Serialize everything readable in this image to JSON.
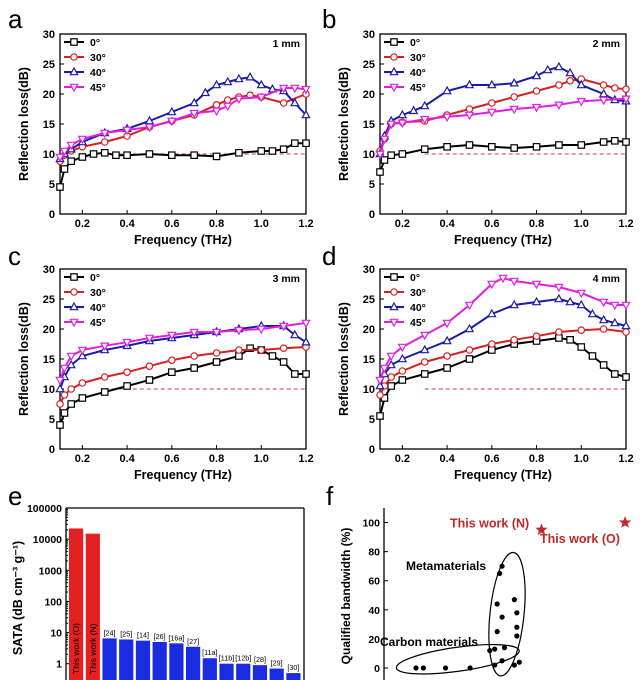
{
  "chart_data": [
    {
      "panel": "a",
      "type": "line",
      "annotation": "1 mm",
      "xlabel": "Frequency (THz)",
      "ylabel": "Reflection loss(dB)",
      "xlim": [
        0.1,
        1.2
      ],
      "ylim": [
        0,
        30
      ],
      "xticks": [
        "0.2",
        "0.4",
        "0.6",
        "0.8",
        "1.0",
        "1.2"
      ],
      "yticks": [
        "0",
        "5",
        "10",
        "15",
        "20",
        "25",
        "30"
      ],
      "reference_line_y": 10,
      "series": [
        {
          "name": "0°",
          "color": "#000000",
          "marker": "square",
          "x": [
            0.1,
            0.12,
            0.15,
            0.2,
            0.25,
            0.3,
            0.35,
            0.4,
            0.5,
            0.6,
            0.7,
            0.8,
            0.9,
            1.0,
            1.05,
            1.1,
            1.15,
            1.2
          ],
          "y": [
            4.5,
            7.5,
            8.8,
            9.5,
            10.0,
            10.2,
            9.8,
            9.8,
            10.0,
            9.8,
            9.8,
            9.6,
            10.2,
            10.5,
            10.5,
            10.8,
            11.8,
            11.8
          ]
        },
        {
          "name": "30°",
          "color": "#d62020",
          "marker": "circle",
          "x": [
            0.1,
            0.12,
            0.15,
            0.2,
            0.3,
            0.4,
            0.5,
            0.6,
            0.7,
            0.8,
            0.85,
            0.9,
            0.95,
            1.0,
            1.1,
            1.2
          ],
          "y": [
            8.8,
            9.8,
            10.5,
            11.2,
            12.0,
            13.0,
            14.5,
            15.5,
            16.5,
            18.2,
            19.0,
            19.5,
            19.8,
            19.5,
            18.5,
            20.0
          ]
        },
        {
          "name": "40°",
          "color": "#1a1aa8",
          "marker": "triangle",
          "x": [
            0.1,
            0.12,
            0.15,
            0.2,
            0.3,
            0.4,
            0.5,
            0.6,
            0.7,
            0.75,
            0.8,
            0.85,
            0.9,
            0.95,
            1.0,
            1.05,
            1.1,
            1.15,
            1.2
          ],
          "y": [
            9.2,
            10.0,
            10.8,
            12.0,
            13.5,
            14.2,
            15.5,
            17.0,
            18.5,
            20.2,
            21.5,
            22.0,
            22.5,
            22.8,
            21.5,
            20.8,
            20.5,
            18.5,
            16.5
          ]
        },
        {
          "name": "45°",
          "color": "#e21ee2",
          "marker": "triangle-down",
          "x": [
            0.1,
            0.12,
            0.15,
            0.2,
            0.3,
            0.4,
            0.5,
            0.6,
            0.7,
            0.8,
            0.85,
            0.9,
            1.0,
            1.1,
            1.15,
            1.2
          ],
          "y": [
            9.5,
            10.5,
            11.5,
            12.5,
            13.5,
            14.0,
            14.5,
            15.5,
            16.8,
            17.2,
            18.0,
            19.2,
            19.5,
            21.0,
            21.0,
            20.8
          ]
        }
      ]
    },
    {
      "panel": "b",
      "type": "line",
      "annotation": "2 mm",
      "xlabel": "Frequency (THz)",
      "ylabel": "Reflection loss(dB)",
      "xlim": [
        0.1,
        1.2
      ],
      "ylim": [
        0,
        30
      ],
      "xticks": [
        "0.2",
        "0.4",
        "0.6",
        "0.8",
        "1.0",
        "1.2"
      ],
      "yticks": [
        "0",
        "5",
        "10",
        "15",
        "20",
        "25",
        "30"
      ],
      "reference_line_y": 10,
      "series": [
        {
          "name": "0°",
          "color": "#000000",
          "marker": "square",
          "x": [
            0.1,
            0.12,
            0.15,
            0.2,
            0.3,
            0.4,
            0.5,
            0.6,
            0.7,
            0.8,
            0.9,
            1.0,
            1.1,
            1.15,
            1.2
          ],
          "y": [
            7.0,
            9.0,
            9.8,
            10.0,
            10.8,
            11.2,
            11.5,
            11.2,
            11.0,
            11.2,
            11.5,
            11.5,
            12.0,
            12.2,
            12.0
          ]
        },
        {
          "name": "30°",
          "color": "#d62020",
          "marker": "circle",
          "x": [
            0.1,
            0.12,
            0.15,
            0.2,
            0.3,
            0.4,
            0.5,
            0.6,
            0.7,
            0.8,
            0.9,
            0.95,
            1.0,
            1.1,
            1.15,
            1.2
          ],
          "y": [
            10.5,
            12.5,
            15.0,
            15.3,
            15.5,
            16.5,
            17.5,
            18.5,
            19.5,
            20.5,
            21.5,
            22.2,
            22.5,
            21.5,
            21.0,
            20.8
          ]
        },
        {
          "name": "40°",
          "color": "#1a1aa8",
          "marker": "triangle",
          "x": [
            0.1,
            0.12,
            0.15,
            0.2,
            0.25,
            0.3,
            0.4,
            0.5,
            0.6,
            0.7,
            0.8,
            0.85,
            0.9,
            0.95,
            1.0,
            1.1,
            1.15,
            1.2
          ],
          "y": [
            10.0,
            13.0,
            15.5,
            16.5,
            17.2,
            18.0,
            20.5,
            21.5,
            21.5,
            21.8,
            23.0,
            24.0,
            24.5,
            23.5,
            21.5,
            20.0,
            19.0,
            18.8
          ]
        },
        {
          "name": "45°",
          "color": "#e21ee2",
          "marker": "triangle-down",
          "x": [
            0.1,
            0.12,
            0.15,
            0.2,
            0.3,
            0.4,
            0.5,
            0.6,
            0.7,
            0.8,
            0.9,
            1.0,
            1.1,
            1.2
          ],
          "y": [
            10.0,
            12.5,
            15.0,
            15.2,
            15.8,
            16.2,
            16.5,
            17.0,
            17.5,
            17.8,
            18.2,
            18.8,
            19.0,
            19.2
          ]
        }
      ]
    },
    {
      "panel": "c",
      "type": "line",
      "annotation": "3 mm",
      "xlabel": "Frequency (THz)",
      "ylabel": "Reflection loss(dB)",
      "xlim": [
        0.1,
        1.2
      ],
      "ylim": [
        0,
        30
      ],
      "xticks": [
        "0.2",
        "0.4",
        "0.6",
        "0.8",
        "1.0",
        "1.2"
      ],
      "yticks": [
        "0",
        "5",
        "10",
        "15",
        "20",
        "25",
        "30"
      ],
      "reference_line_y": 10,
      "series": [
        {
          "name": "0°",
          "color": "#000000",
          "marker": "square",
          "x": [
            0.1,
            0.12,
            0.15,
            0.2,
            0.3,
            0.4,
            0.5,
            0.6,
            0.7,
            0.8,
            0.9,
            0.95,
            1.0,
            1.05,
            1.1,
            1.15,
            1.2
          ],
          "y": [
            4.0,
            6.0,
            7.5,
            8.5,
            9.5,
            10.5,
            11.5,
            12.8,
            13.5,
            14.5,
            15.5,
            16.8,
            16.5,
            15.5,
            14.5,
            12.5,
            12.5
          ]
        },
        {
          "name": "30°",
          "color": "#d62020",
          "marker": "circle",
          "x": [
            0.1,
            0.12,
            0.15,
            0.2,
            0.3,
            0.4,
            0.5,
            0.6,
            0.7,
            0.8,
            0.9,
            1.0,
            1.1,
            1.2
          ],
          "y": [
            7.5,
            9.0,
            10.0,
            11.0,
            12.0,
            12.8,
            13.8,
            14.8,
            15.5,
            16.0,
            16.5,
            16.5,
            16.8,
            17.0
          ]
        },
        {
          "name": "40°",
          "color": "#1a1aa8",
          "marker": "triangle",
          "x": [
            0.1,
            0.12,
            0.15,
            0.2,
            0.3,
            0.4,
            0.5,
            0.6,
            0.7,
            0.8,
            0.9,
            1.0,
            1.1,
            1.15,
            1.2
          ],
          "y": [
            10.0,
            12.0,
            14.0,
            15.5,
            16.5,
            17.2,
            18.0,
            18.5,
            19.0,
            19.5,
            20.0,
            20.5,
            20.5,
            19.0,
            17.8
          ]
        },
        {
          "name": "45°",
          "color": "#e21ee2",
          "marker": "triangle-down",
          "x": [
            0.1,
            0.12,
            0.15,
            0.2,
            0.3,
            0.4,
            0.5,
            0.6,
            0.7,
            0.8,
            0.9,
            1.0,
            1.1,
            1.2
          ],
          "y": [
            11.5,
            13.5,
            15.5,
            16.5,
            17.2,
            17.8,
            18.5,
            19.0,
            19.5,
            19.5,
            19.8,
            20.0,
            20.5,
            21.0
          ]
        }
      ]
    },
    {
      "panel": "d",
      "type": "line",
      "annotation": "4 mm",
      "xlabel": "Frequency (THz)",
      "ylabel": "Reflection loss(dB)",
      "xlim": [
        0.1,
        1.2
      ],
      "ylim": [
        0,
        30
      ],
      "xticks": [
        "0.2",
        "0.4",
        "0.6",
        "0.8",
        "1.0",
        "1.2"
      ],
      "yticks": [
        "0",
        "5",
        "10",
        "15",
        "20",
        "25",
        "30"
      ],
      "reference_line_y": 10,
      "series": [
        {
          "name": "0°",
          "color": "#000000",
          "marker": "square",
          "x": [
            0.1,
            0.12,
            0.15,
            0.2,
            0.3,
            0.4,
            0.5,
            0.6,
            0.7,
            0.8,
            0.9,
            0.95,
            1.0,
            1.05,
            1.1,
            1.15,
            1.2
          ],
          "y": [
            5.5,
            8.5,
            10.5,
            11.5,
            12.5,
            13.5,
            15.0,
            16.5,
            17.5,
            18.0,
            18.5,
            18.2,
            17.0,
            15.5,
            14.0,
            12.5,
            12.0
          ]
        },
        {
          "name": "30°",
          "color": "#d62020",
          "marker": "circle",
          "x": [
            0.1,
            0.12,
            0.15,
            0.2,
            0.3,
            0.4,
            0.5,
            0.6,
            0.7,
            0.8,
            0.9,
            1.0,
            1.1,
            1.2
          ],
          "y": [
            9.0,
            10.5,
            12.0,
            13.0,
            14.5,
            15.5,
            16.5,
            17.5,
            18.2,
            18.8,
            19.5,
            19.8,
            20.0,
            19.5
          ]
        },
        {
          "name": "40°",
          "color": "#1a1aa8",
          "marker": "triangle",
          "x": [
            0.1,
            0.12,
            0.15,
            0.2,
            0.3,
            0.4,
            0.5,
            0.6,
            0.7,
            0.8,
            0.9,
            0.95,
            1.0,
            1.05,
            1.1,
            1.15,
            1.2
          ],
          "y": [
            10.5,
            12.5,
            14.0,
            15.0,
            16.5,
            18.0,
            20.0,
            22.5,
            24.0,
            24.5,
            25.0,
            24.5,
            24.0,
            22.5,
            21.5,
            21.0,
            20.5
          ]
        },
        {
          "name": "45°",
          "color": "#e21ee2",
          "marker": "triangle-down",
          "x": [
            0.1,
            0.12,
            0.15,
            0.2,
            0.3,
            0.4,
            0.5,
            0.6,
            0.65,
            0.7,
            0.8,
            0.9,
            1.0,
            1.1,
            1.15,
            1.2
          ],
          "y": [
            11.5,
            13.5,
            15.5,
            17.0,
            19.0,
            21.0,
            24.0,
            27.5,
            28.5,
            28.0,
            27.5,
            27.0,
            26.0,
            24.5,
            24.0,
            24.0
          ]
        }
      ]
    },
    {
      "panel": "e",
      "type": "bar",
      "ylabel": "SATA (dB cm⁻³ g⁻¹)",
      "yscale": "log",
      "ylim": [
        0.3,
        100000
      ],
      "yticks": [
        "100000",
        "10000",
        "1000",
        "100",
        "10",
        "1"
      ],
      "bars": [
        {
          "label": "This work (O)",
          "value": 22000,
          "color": "#e52020"
        },
        {
          "label": "This work (N)",
          "value": 15000,
          "color": "#e52020"
        },
        {
          "label": "[24]",
          "value": 6.5,
          "color": "#1a2ce0"
        },
        {
          "label": "[25]",
          "value": 6.0,
          "color": "#1a2ce0"
        },
        {
          "label": "[14]",
          "value": 5.5,
          "color": "#1a2ce0"
        },
        {
          "label": "[26]",
          "value": 5.0,
          "color": "#1a2ce0"
        },
        {
          "label": "[16a]",
          "value": 4.5,
          "color": "#1a2ce0"
        },
        {
          "label": "[27]",
          "value": 3.5,
          "color": "#1a2ce0"
        },
        {
          "label": "[11a]",
          "value": 1.5,
          "color": "#1a2ce0"
        },
        {
          "label": "[11b]",
          "value": 1.0,
          "color": "#1a2ce0"
        },
        {
          "label": "[12b]",
          "value": 1.0,
          "color": "#1a2ce0"
        },
        {
          "label": "[28]",
          "value": 0.9,
          "color": "#1a2ce0"
        },
        {
          "label": "[29]",
          "value": 0.7,
          "color": "#1a2ce0"
        },
        {
          "label": "[30]",
          "value": 0.5,
          "color": "#1a2ce0"
        }
      ]
    },
    {
      "panel": "f",
      "type": "scatter",
      "ylabel": "Qualified bandwidth (%)",
      "ylim": [
        0,
        110
      ],
      "xlim": [
        0,
        10
      ],
      "yticks": [
        "0",
        "20",
        "40",
        "60",
        "80",
        "100"
      ],
      "highlight": [
        {
          "label": "This work (N)",
          "x": 6.4,
          "y": 95,
          "color": "#c0282a"
        },
        {
          "label": "This work (O)",
          "x": 9.8,
          "y": 100,
          "color": "#c0282a"
        }
      ],
      "groups": [
        {
          "label": "Metamaterials",
          "points": [
            [
              4.8,
              70
            ],
            [
              4.7,
              65
            ],
            [
              4.6,
              44
            ],
            [
              5.3,
              47
            ],
            [
              5.4,
              38
            ],
            [
              4.8,
              35
            ],
            [
              4.6,
              25
            ],
            [
              5.4,
              28
            ],
            [
              5.4,
              22
            ],
            [
              4.9,
              14
            ],
            [
              4.8,
              5
            ],
            [
              5.5,
              4
            ],
            [
              5.3,
              2
            ],
            [
              4.5,
              2
            ]
          ]
        },
        {
          "label": "Carbon materials",
          "points": [
            [
              1.3,
              0
            ],
            [
              1.6,
              0
            ],
            [
              2.5,
              0
            ],
            [
              3.5,
              0
            ],
            [
              4.5,
              13
            ],
            [
              4.3,
              12
            ]
          ]
        }
      ]
    }
  ]
}
